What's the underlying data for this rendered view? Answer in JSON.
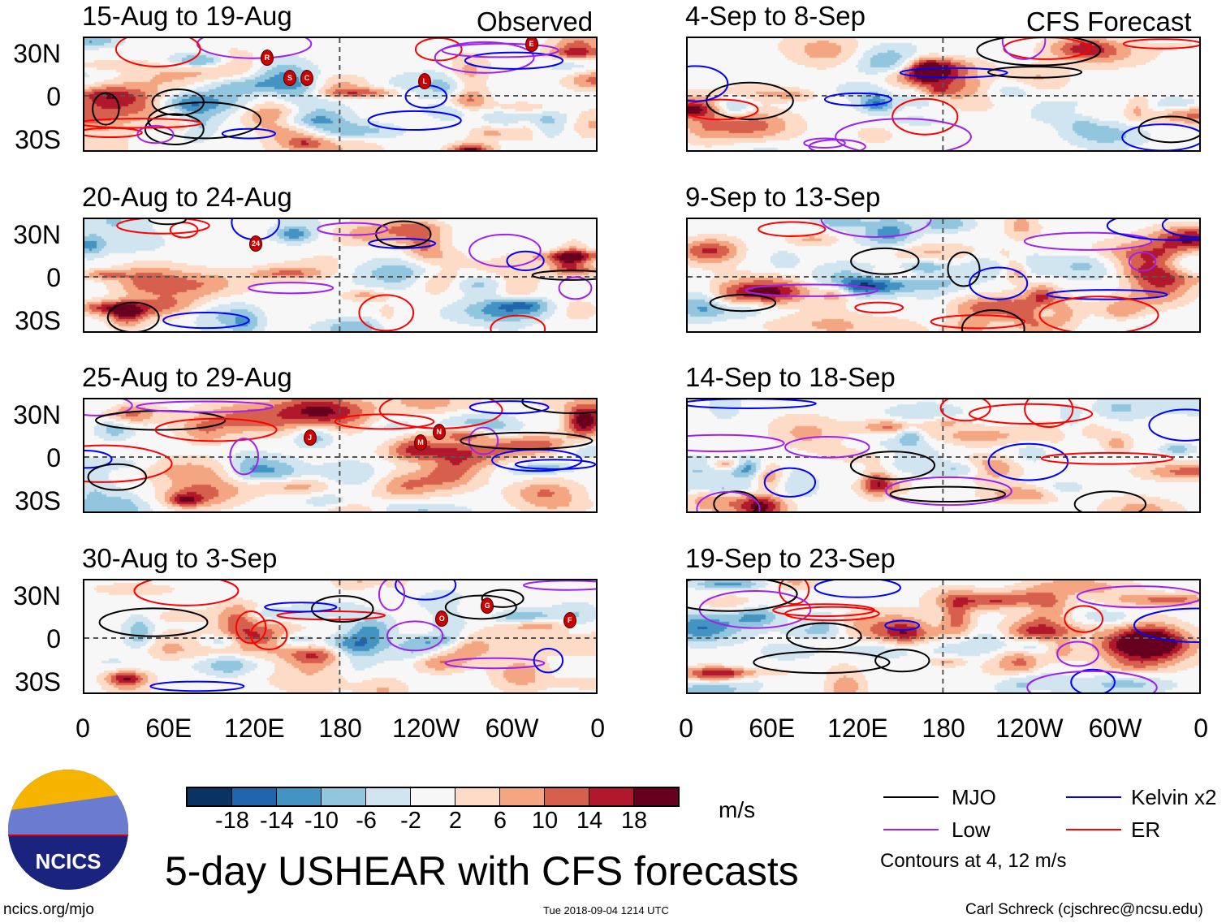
{
  "title": "5-day USHEAR with CFS forecasts",
  "labels": {
    "observed": "Observed",
    "forecast": "CFS Forecast"
  },
  "lat_ticks": [
    "30N",
    "0",
    "30S"
  ],
  "lon_ticks": [
    "0",
    "60E",
    "120E",
    "180",
    "120W",
    "60W",
    "0"
  ],
  "colorbar": {
    "unit": "m/s",
    "ticks": [
      "-18",
      "-14",
      "-10",
      "-6",
      "-2",
      "2",
      "6",
      "10",
      "14",
      "18"
    ],
    "colors": [
      "#0a3263",
      "#2166ac",
      "#4393c3",
      "#92c5de",
      "#d1e5f0",
      "#f7f7f7",
      "#fddbc7",
      "#f4a582",
      "#d6604d",
      "#b2182b",
      "#67001f"
    ]
  },
  "legend": {
    "items": [
      {
        "label": "MJO",
        "color": "#000000"
      },
      {
        "label": "Kelvin x2",
        "color": "#0000ff"
      },
      {
        "label": "Low",
        "color": "#a020f0"
      },
      {
        "label": "ER",
        "color": "#ff0000"
      }
    ],
    "note": "Contours at 4, 12 m/s"
  },
  "logo": "NCICS",
  "footer": {
    "url": "ncics.org/mjo",
    "timestamp": "Tue 2018-09-04 1214 UTC",
    "author": "Carl Schreck (cjschrec@ncsu.edu)"
  },
  "chart_data": {
    "type": "heatmap",
    "variable": "USHEAR anomaly",
    "unit": "m/s",
    "lon_range": [
      0,
      360
    ],
    "lat_range": [
      -40,
      40
    ],
    "panels": [
      {
        "title": "15-Aug to 19-Aug",
        "source": "Observed",
        "storms": [
          {
            "label": "R",
            "lon": 128,
            "lat": 27
          },
          {
            "label": "S",
            "lon": 144,
            "lat": 13
          },
          {
            "label": "C",
            "lon": 156,
            "lat": 13
          },
          {
            "label": "L",
            "lon": 239,
            "lat": 11
          },
          {
            "label": "E",
            "lon": 314,
            "lat": 37
          }
        ]
      },
      {
        "title": "20-Aug to 24-Aug",
        "source": "Observed",
        "storms": [
          {
            "label": "24",
            "lon": 120,
            "lat": 24
          }
        ]
      },
      {
        "title": "25-Aug to 29-Aug",
        "source": "Observed",
        "storms": [
          {
            "label": "J",
            "lon": 158,
            "lat": 14
          },
          {
            "label": "M",
            "lon": 236,
            "lat": 11
          },
          {
            "label": "N",
            "lon": 249,
            "lat": 18
          }
        ]
      },
      {
        "title": "30-Aug to 3-Sep",
        "source": "Observed",
        "storms": [
          {
            "label": "O",
            "lon": 251,
            "lat": 14
          },
          {
            "label": "G",
            "lon": 283,
            "lat": 23
          },
          {
            "label": "F",
            "lon": 341,
            "lat": 13
          }
        ]
      },
      {
        "title": "4-Sep to 8-Sep",
        "source": "CFS Forecast",
        "storms": []
      },
      {
        "title": "9-Sep to 13-Sep",
        "source": "CFS Forecast",
        "storms": []
      },
      {
        "title": "14-Sep to 18-Sep",
        "source": "CFS Forecast",
        "storms": []
      },
      {
        "title": "19-Sep to 23-Sep",
        "source": "CFS Forecast",
        "storms": []
      }
    ]
  }
}
